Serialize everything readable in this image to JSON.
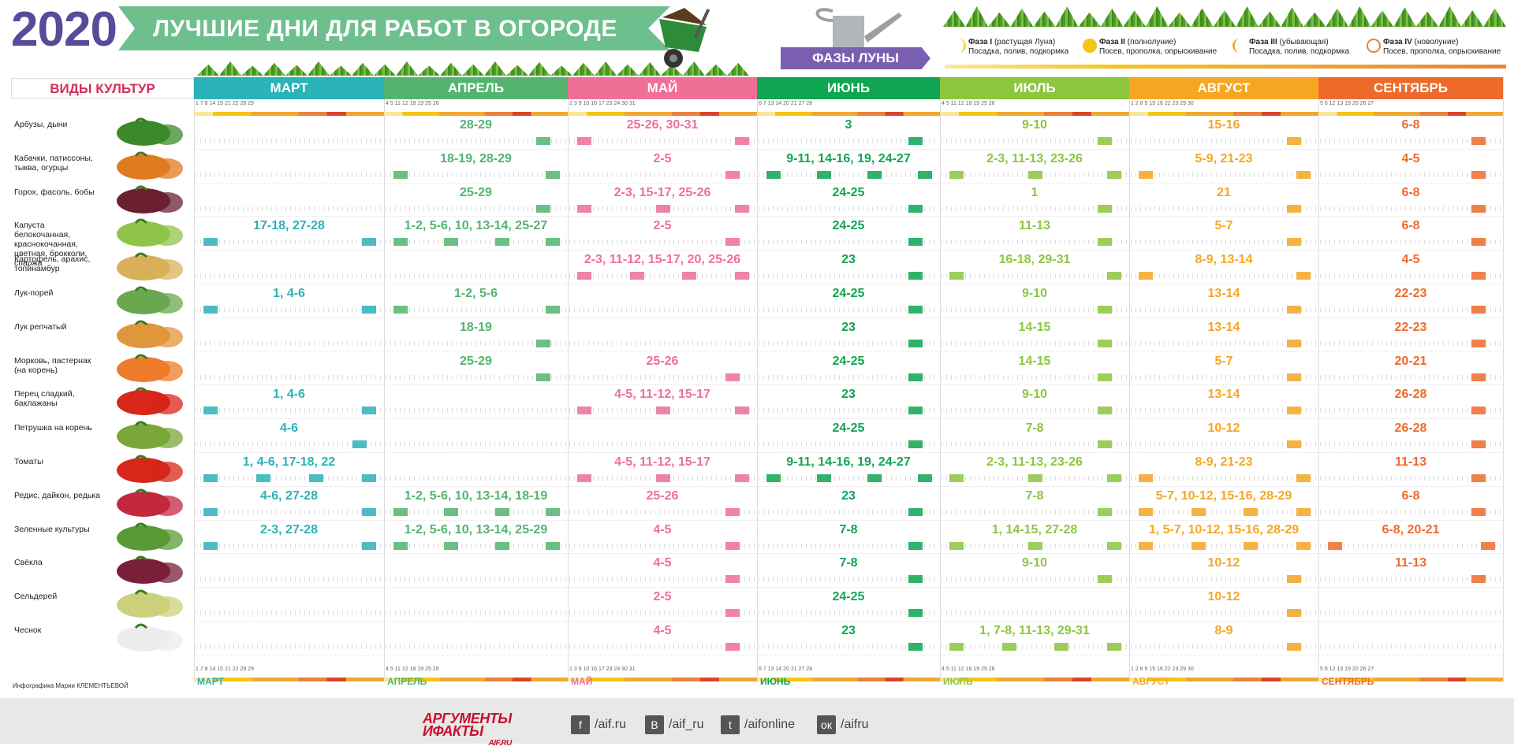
{
  "header": {
    "year": "2020",
    "title": "ЛУЧШИЕ ДНИ ДЛЯ РАБОТ В ОГОРОДЕ",
    "moon_label": "ФАЗЫ ЛУНЫ"
  },
  "phases": [
    {
      "name": "Фаза I",
      "note": "(растущая Луна)",
      "desc": "Посадка, полив, подкормка"
    },
    {
      "name": "Фаза II",
      "note": "(полнолуние)",
      "desc": "Посев, прополка, опрыскивание"
    },
    {
      "name": "Фаза III",
      "note": "(убывающая)",
      "desc": "Посадка, полив, подкормка"
    },
    {
      "name": "Фаза IV",
      "note": "(новолуние)",
      "desc": "Посев, прополка, опрыскивание"
    }
  ],
  "crops_header": "ВИДЫ КУЛЬТУР",
  "months": [
    {
      "name": "МАРТ",
      "color": "#2ab3b8",
      "ticks": "1   7 8      14 15     21 22     28 29"
    },
    {
      "name": "АПРЕЛЬ",
      "color": "#53b46f",
      "ticks": "4 5      11 12     18 19     25 26"
    },
    {
      "name": "МАЙ",
      "color": "#ef6f97",
      "ticks": "2 3     9 10     16 17     23 24     30 31"
    },
    {
      "name": "ИЮНЬ",
      "color": "#0fa552",
      "ticks": "6 7      13 14     20 21     27 28"
    },
    {
      "name": "ИЮЛЬ",
      "color": "#8cc63f",
      "ticks": "4 5      11 12     18 19     25 26"
    },
    {
      "name": "АВГУСТ",
      "color": "#f5a623",
      "ticks": "1 2      8 9     15 16     22 23     29 30"
    },
    {
      "name": "СЕНТЯБРЬ",
      "color": "#ee6a2b",
      "ticks": "5 6      12 13     19 20     26 27"
    }
  ],
  "rows": [
    {
      "label": "Арбузы, дыни",
      "icon": "watermelon-icon",
      "values": [
        "",
        "28-29",
        "25-26, 30-31",
        "3",
        "9-10",
        "15-16",
        "6-8"
      ]
    },
    {
      "label": "Кабачки, патиссоны, тыква, огурцы",
      "icon": "pumpkin-icon",
      "values": [
        "",
        "18-19, 28-29",
        "2-5",
        "9-11, 14-16, 19, 24-27",
        "2-3, 11-13, 23-26",
        "5-9, 21-23",
        "4-5"
      ]
    },
    {
      "label": "Горох, фасоль, бобы",
      "icon": "beans-icon",
      "values": [
        "",
        "25-29",
        "2-3, 15-17, 25-26",
        "24-25",
        "1",
        "21",
        "6-8"
      ]
    },
    {
      "label": "Капуста белокочанная, краснокочанная, цветная, брокколи, спаржа",
      "icon": "cabbage-icon",
      "values": [
        "17-18, 27-28",
        "1-2, 5-6, 10, 13-14, 25-27",
        "2-5",
        "24-25",
        "11-13",
        "5-7",
        "6-8"
      ]
    },
    {
      "label": "Картофель, арахис, топинамбур",
      "icon": "potato-icon",
      "values": [
        "",
        "",
        "2-3, 11-12, 15-17, 20, 25-26",
        "23",
        "16-18, 29-31",
        "8-9, 13-14",
        "4-5"
      ]
    },
    {
      "label": "Лук-порей",
      "icon": "leek-icon",
      "values": [
        "1, 4-6",
        "1-2, 5-6",
        "",
        "24-25",
        "9-10",
        "13-14",
        "22-23"
      ]
    },
    {
      "label": "Лук репчатый",
      "icon": "onion-icon",
      "values": [
        "",
        "18-19",
        "",
        "23",
        "14-15",
        "13-14",
        "22-23"
      ]
    },
    {
      "label": "Морковь, пастернак (на корень)",
      "icon": "carrot-icon",
      "values": [
        "",
        "25-29",
        "25-26",
        "24-25",
        "14-15",
        "5-7",
        "20-21"
      ]
    },
    {
      "label": "Перец сладкий, баклажаны",
      "icon": "pepper-icon",
      "values": [
        "1, 4-6",
        "",
        "4-5, 11-12, 15-17",
        "23",
        "9-10",
        "13-14",
        "26-28"
      ]
    },
    {
      "label": "Петрушка на корень",
      "icon": "parsley-icon",
      "values": [
        "4-6",
        "",
        "",
        "24-25",
        "7-8",
        "10-12",
        "26-28"
      ]
    },
    {
      "label": "Томаты",
      "icon": "tomato-icon",
      "values": [
        "1, 4-6, 17-18, 22",
        "",
        "4-5, 11-12, 15-17",
        "9-11, 14-16, 19, 24-27",
        "2-3, 11-13, 23-26",
        "8-9, 21-23",
        "11-13"
      ]
    },
    {
      "label": "Редис, дайкон, редька",
      "icon": "radish-icon",
      "values": [
        "4-6, 27-28",
        "1-2, 5-6, 10, 13-14, 18-19",
        "25-26",
        "23",
        "7-8",
        "5-7, 10-12, 15-16, 28-29",
        "6-8"
      ]
    },
    {
      "label": "Зеленные культуры",
      "icon": "greens-icon",
      "values": [
        "2-3, 27-28",
        "1-2, 5-6, 10, 13-14, 25-29",
        "4-5",
        "7-8",
        "1, 14-15, 27-28",
        "1, 5-7, 10-12, 15-16, 28-29",
        "6-8, 20-21"
      ]
    },
    {
      "label": "Свёкла",
      "icon": "beet-icon",
      "values": [
        "",
        "",
        "4-5",
        "7-8",
        "9-10",
        "10-12",
        "11-13"
      ]
    },
    {
      "label": "Сельдерей",
      "icon": "celery-icon",
      "values": [
        "",
        "",
        "2-5",
        "24-25",
        "",
        "10-12",
        ""
      ]
    },
    {
      "label": "Чеснок",
      "icon": "garlic-icon",
      "values": [
        "",
        "",
        "4-5",
        "23",
        "1, 7-8, 11-13, 29-31",
        "8-9",
        ""
      ]
    }
  ],
  "credit": "Инфографика Марии КЛЕМЕНТЬЕВОЙ",
  "footer": {
    "brand_top": "АРГУМЕНТЫ",
    "brand_bottom": "ИФАКТЫ",
    "brand_site": "AIF.RU",
    "socials": [
      {
        "icon": "facebook-icon",
        "glyph": "f",
        "text": "/aif.ru"
      },
      {
        "icon": "vk-icon",
        "glyph": "В",
        "text": "/aif_ru"
      },
      {
        "icon": "twitter-icon",
        "glyph": "t",
        "text": "/aifonline"
      },
      {
        "icon": "odnoklassniki-icon",
        "glyph": "ок",
        "text": "/aifru"
      }
    ]
  }
}
